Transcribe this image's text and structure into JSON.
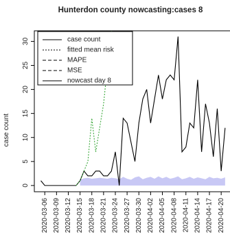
{
  "chart_data": {
    "type": "line",
    "title": "Hunterdon county nowcasting:cases 8",
    "y_label": "case count",
    "x": [
      "2020-03-05",
      "2020-03-06",
      "2020-03-07",
      "2020-03-08",
      "2020-03-09",
      "2020-03-10",
      "2020-03-11",
      "2020-03-12",
      "2020-03-13",
      "2020-03-14",
      "2020-03-15",
      "2020-03-16",
      "2020-03-17",
      "2020-03-18",
      "2020-03-19",
      "2020-03-20",
      "2020-03-21",
      "2020-03-22",
      "2020-03-23",
      "2020-03-24",
      "2020-03-25",
      "2020-03-26",
      "2020-03-27",
      "2020-03-28",
      "2020-03-29",
      "2020-03-30",
      "2020-03-31",
      "2020-04-01",
      "2020-04-02",
      "2020-04-03",
      "2020-04-04",
      "2020-04-05",
      "2020-04-06",
      "2020-04-07",
      "2020-04-08",
      "2020-04-09",
      "2020-04-10",
      "2020-04-11",
      "2020-04-12",
      "2020-04-13",
      "2020-04-14",
      "2020-04-15",
      "2020-04-16",
      "2020-04-17",
      "2020-04-18",
      "2020-04-19",
      "2020-04-20",
      "2020-04-21"
    ],
    "xticks": [
      "2020-03-06",
      "2020-03-09",
      "2020-03-12",
      "2020-03-15",
      "2020-03-18",
      "2020-03-21",
      "2020-03-24",
      "2020-03-27",
      "2020-03-30",
      "2020-04-02",
      "2020-04-05",
      "2020-04-08",
      "2020-04-11",
      "2020-04-14",
      "2020-04-17",
      "2020-04-20"
    ],
    "ylim": [
      -1.3,
      32.2
    ],
    "yticks": [
      0,
      5,
      10,
      15,
      20,
      25,
      30
    ],
    "band": {
      "color": "#c8c8f5",
      "values": [
        null,
        null,
        null,
        null,
        null,
        null,
        null,
        null,
        null,
        null,
        1.2,
        1.5,
        1.6,
        1.4,
        1.5,
        1.6,
        1.5,
        1.4,
        1.6,
        1.5,
        1.3,
        1.8,
        1.4,
        1.2,
        1.7,
        1.9,
        1.3,
        1.6,
        1.8,
        1.4,
        1.9,
        1.5,
        1.8,
        1.4,
        1.6,
        1.9,
        1.3,
        1.5,
        1.8,
        1.4,
        1.7,
        1.5,
        1.3,
        1.8,
        1.5,
        1.6,
        1.4,
        1.7
      ]
    },
    "series": [
      {
        "name": "case count",
        "color": "#000000",
        "dash": "none",
        "values": [
          1,
          0,
          0,
          0,
          0,
          0,
          0,
          0,
          0,
          0,
          1,
          3,
          2,
          2,
          3,
          3,
          2,
          2,
          3,
          7,
          0,
          14,
          13,
          9,
          5,
          13,
          18,
          20,
          13,
          18,
          23,
          18,
          22,
          23,
          22,
          31,
          7,
          8,
          13,
          12,
          22,
          7,
          17,
          13,
          6,
          16,
          3,
          12
        ]
      },
      {
        "name": "fitted mean risk",
        "color": "#3aa83a",
        "dash": "2,2",
        "values": [
          null,
          null,
          null,
          null,
          null,
          null,
          null,
          null,
          null,
          0,
          1,
          3,
          5,
          14,
          7,
          12,
          17,
          25,
          33,
          22,
          null,
          null,
          null,
          null,
          null,
          null,
          null,
          null,
          null,
          null,
          null,
          null,
          null,
          null,
          null,
          null,
          null,
          null,
          null,
          null,
          null,
          null,
          null,
          null,
          null,
          null,
          null,
          null
        ]
      },
      {
        "name": "MAPE",
        "color": "#000000",
        "dash": "5,3"
      },
      {
        "name": "MSE",
        "color": "#000000",
        "dash": "5,3"
      },
      {
        "name": "nowcast day 8",
        "color": "#000000",
        "dash": "none"
      }
    ],
    "legend": "top-left"
  }
}
